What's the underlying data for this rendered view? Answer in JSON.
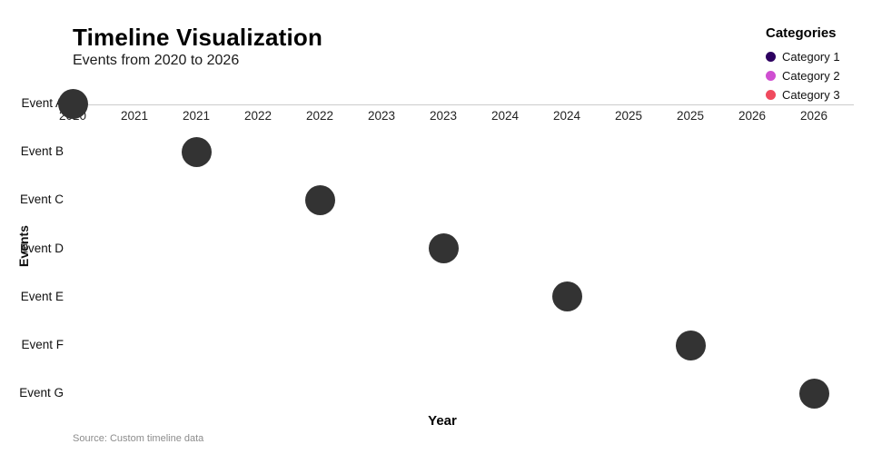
{
  "header": {
    "title": "Timeline Visualization",
    "subtitle": "Events from 2020 to 2026"
  },
  "legend": {
    "title": "Categories",
    "items": [
      {
        "label": "Category 1",
        "color": "#2d0060"
      },
      {
        "label": "Category 2",
        "color": "#cf4fd1"
      },
      {
        "label": "Category 3",
        "color": "#f04a5e"
      }
    ]
  },
  "chart_data": {
    "type": "scatter",
    "title": "Timeline Visualization",
    "subtitle": "Events from 2020 to 2026",
    "xlabel": "Year",
    "ylabel": "Events",
    "xlim": [
      2020,
      2026
    ],
    "x_tick_labels": [
      "2020",
      "2021",
      "2021",
      "2022",
      "2022",
      "2023",
      "2023",
      "2024",
      "2024",
      "2025",
      "2025",
      "2026",
      "2026"
    ],
    "categories": [
      "Event A",
      "Event B",
      "Event C",
      "Event D",
      "Event E",
      "Event F",
      "Event G"
    ],
    "points": [
      {
        "event": "Event A",
        "year": 2020
      },
      {
        "event": "Event B",
        "year": 2021
      },
      {
        "event": "Event C",
        "year": 2022
      },
      {
        "event": "Event D",
        "year": 2023
      },
      {
        "event": "Event E",
        "year": 2024
      },
      {
        "event": "Event F",
        "year": 2025
      },
      {
        "event": "Event G",
        "year": 2026
      }
    ],
    "marker_color": "#333333",
    "legend_position": "top-right",
    "grid": false,
    "source": "Source: Custom timeline data"
  }
}
